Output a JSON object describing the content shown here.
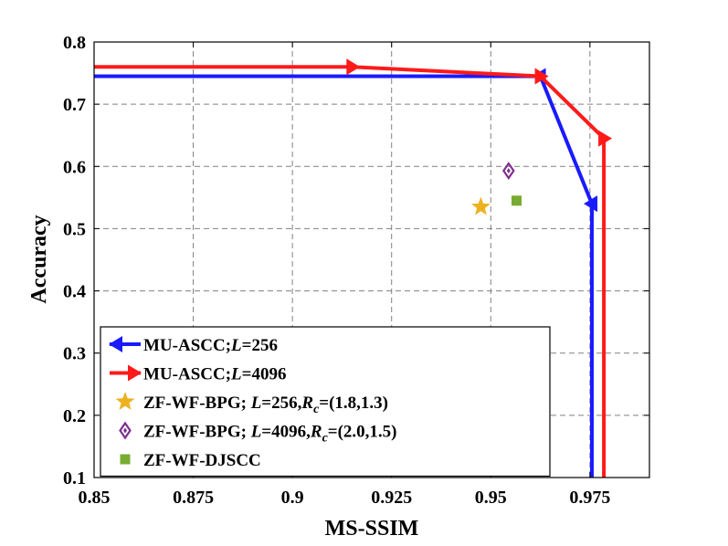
{
  "chart_data": {
    "type": "line",
    "title": "",
    "xlabel": "MS-SSIM",
    "ylabel": "Accuracy",
    "xlim": [
      0.85,
      0.99
    ],
    "ylim": [
      0.1,
      0.8
    ],
    "xticks": [
      0.85,
      0.875,
      0.9,
      0.925,
      0.95,
      0.975
    ],
    "xtick_labels": [
      "0.85",
      "0.875",
      "0.9",
      "0.925",
      "0.95",
      "0.975"
    ],
    "yticks": [
      0.1,
      0.2,
      0.3,
      0.4,
      0.5,
      0.6,
      0.7,
      0.8
    ],
    "ytick_labels": [
      "0.1",
      "0.2",
      "0.3",
      "0.4",
      "0.5",
      "0.6",
      "0.7",
      "0.8"
    ],
    "grid": true,
    "legend_position": "bottom-left",
    "series": [
      {
        "name": "MU-ASCC;L=256",
        "legend_parts": [
          "MU-ASCC;",
          "L",
          "=256"
        ],
        "color": "#1a1aff",
        "marker": "triangle-left",
        "kind": "line",
        "points": [
          [
            0.85,
            0.745
          ],
          [
            0.9625,
            0.745
          ],
          [
            0.9755,
            0.54
          ],
          [
            0.9755,
            0.1
          ]
        ],
        "marker_points": [
          [
            0.9625,
            0.745
          ],
          [
            0.9755,
            0.54
          ]
        ]
      },
      {
        "name": "MU-ASCC;L=4096",
        "legend_parts": [
          "MU-ASCC;",
          "L",
          "=4096"
        ],
        "color": "#ff1a1a",
        "marker": "triangle-right",
        "kind": "line",
        "points": [
          [
            0.85,
            0.76
          ],
          [
            0.915,
            0.76
          ],
          [
            0.9625,
            0.745
          ],
          [
            0.9785,
            0.645
          ],
          [
            0.9785,
            0.1
          ]
        ],
        "marker_points": [
          [
            0.915,
            0.76
          ],
          [
            0.9625,
            0.745
          ],
          [
            0.9785,
            0.645
          ]
        ]
      },
      {
        "name": "ZF-WF-BPG; L=256,Rc=(1.8,1.3)",
        "legend_parts": [
          "ZF-WF-BPG; ",
          "L",
          "=256,",
          "R",
          "c",
          "=(1.8,1.3)"
        ],
        "color": "#edb120",
        "marker": "star",
        "kind": "scatter",
        "points": [
          [
            0.9475,
            0.535
          ]
        ]
      },
      {
        "name": "ZF-WF-BPG; L=4096,Rc=(2.0,1.5)",
        "legend_parts": [
          "ZF-WF-BPG; ",
          "L",
          "=4096,",
          "R",
          "c",
          "=(2.0,1.5)"
        ],
        "color": "#7e2f8e",
        "marker": "diamond",
        "kind": "scatter",
        "points": [
          [
            0.9545,
            0.593
          ]
        ]
      },
      {
        "name": "ZF-WF-DJSCC",
        "legend_parts": [
          "ZF-WF-DJSCC"
        ],
        "color": "#77ac30",
        "marker": "square",
        "kind": "scatter",
        "points": [
          [
            0.9565,
            0.545
          ]
        ]
      }
    ]
  }
}
